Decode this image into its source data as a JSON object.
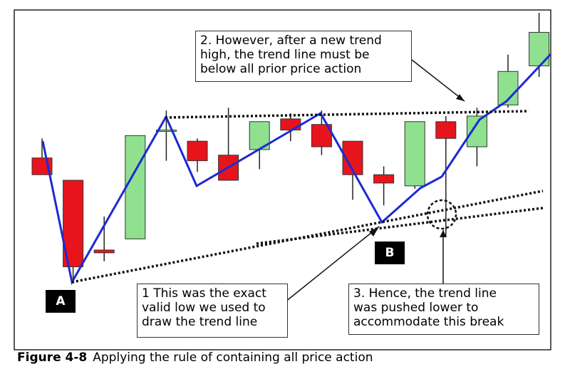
{
  "chart_data": {
    "type": "candlestick",
    "ylim": [
      0,
      100
    ],
    "candles": [
      {
        "open": 73,
        "close": 67,
        "high": 80,
        "low": 67
      },
      {
        "open": 65,
        "close": 34,
        "high": 65,
        "low": 28
      },
      {
        "open": 40,
        "close": 39,
        "high": 52,
        "low": 36
      },
      {
        "open": 44,
        "close": 81,
        "high": 81,
        "low": 44
      },
      {
        "open": 83,
        "close": 83,
        "high": 90,
        "low": 72
      },
      {
        "open": 79,
        "close": 72,
        "high": 80,
        "low": 68
      },
      {
        "open": 74,
        "close": 65,
        "high": 91,
        "low": 65
      },
      {
        "open": 76,
        "close": 86,
        "high": 86,
        "low": 69
      },
      {
        "open": 87,
        "close": 83,
        "high": 89,
        "low": 79
      },
      {
        "open": 85,
        "close": 77,
        "high": 90,
        "low": 74
      },
      {
        "open": 79,
        "close": 67,
        "high": 79,
        "low": 58
      },
      {
        "open": 67,
        "close": 64,
        "high": 70,
        "low": 56
      },
      {
        "open": 63,
        "close": 86,
        "high": 86,
        "low": 62
      },
      {
        "open": 86,
        "close": 80,
        "high": 88,
        "low": 45
      },
      {
        "open": 77,
        "close": 88,
        "high": 91,
        "low": 70
      },
      {
        "open": 92,
        "close": 104,
        "high": 110,
        "low": 91
      },
      {
        "open": 106,
        "close": 118,
        "high": 125,
        "low": 102
      }
    ],
    "colors": {
      "bull": "#8fe08f",
      "bear": "#e8141c",
      "trend": "#1c2bd0",
      "line": "#111111"
    }
  },
  "annotations": {
    "note1": "1 This was the exact\nvalid low we used to\ndraw the trend line",
    "note2": "2. However, after a new trend\nhigh, the trend line must be\nbelow all prior price action",
    "note3": "3. Hence, the trend line\nwas pushed lower to\naccommodate this break",
    "marker_a": "A",
    "marker_b": "B"
  },
  "caption": {
    "label": "Figure 4-8",
    "text": "Applying the rule of containing all price action"
  }
}
